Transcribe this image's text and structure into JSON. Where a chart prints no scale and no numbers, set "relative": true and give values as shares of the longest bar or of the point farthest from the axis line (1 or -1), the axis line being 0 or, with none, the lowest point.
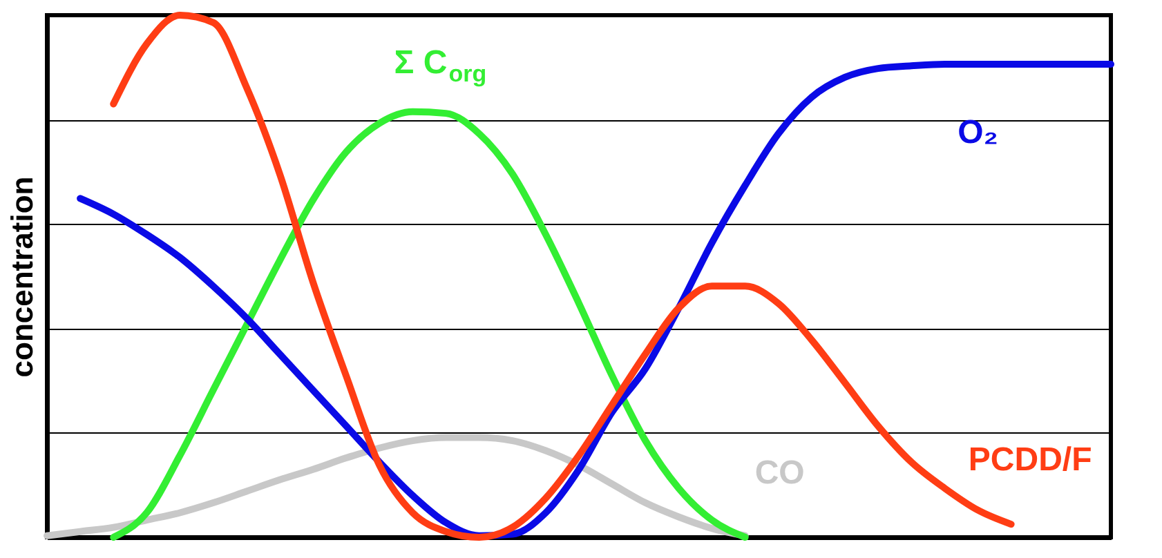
{
  "chart_data": {
    "type": "line",
    "relative": true,
    "ylabel": "concentration",
    "grid": "y",
    "legend": false,
    "categories": [
      null,
      null,
      null,
      null,
      null,
      null,
      null,
      null,
      null,
      null,
      null,
      null,
      null,
      null,
      null,
      null,
      null,
      null,
      null,
      null,
      null,
      null,
      null,
      null,
      null,
      null,
      null,
      null,
      null,
      null,
      null,
      null,
      null
    ],
    "series": [
      {
        "name": "CO",
        "color": "#c8c8c8",
        "values": [
          0.003,
          0.011,
          0.019,
          0.033,
          0.047,
          0.066,
          0.088,
          0.11,
          0.13,
          0.152,
          0.171,
          0.185,
          0.191,
          0.191,
          0.185,
          0.166,
          0.138,
          0.102,
          0.066,
          0.039,
          0.017,
          0.003,
          null,
          null,
          null,
          null,
          null,
          null,
          null,
          null,
          null,
          null,
          null
        ]
      },
      {
        "name": "Σ C$_{org}$",
        "color": "#33ee33",
        "values": [
          null,
          null,
          0,
          0.047,
          0.157,
          0.282,
          0.406,
          0.53,
          0.646,
          0.738,
          0.793,
          0.815,
          0.812,
          0.773,
          0.696,
          0.58,
          0.448,
          0.309,
          0.185,
          0.094,
          0.033,
          0,
          null,
          null,
          null,
          null,
          null,
          null,
          null,
          null,
          null,
          null,
          null
        ]
      },
      {
        "name": "O₂",
        "color": "#0a0ae6",
        "values": [
          null,
          0.649,
          0.619,
          0.58,
          0.536,
          0.481,
          0.42,
          0.351,
          0.282,
          0.213,
          0.144,
          0.08,
          0.028,
          0.003,
          0.006,
          0.047,
          0.13,
          0.24,
          0.323,
          0.439,
          0.564,
          0.674,
          0.773,
          0.843,
          0.881,
          0.898,
          0.903,
          0.906,
          0.906,
          0.906,
          0.906,
          0.906,
          0.906
        ]
      },
      {
        "name": "PCDD/F",
        "color": "#ff3d14",
        "values": [
          null,
          null,
          0.83,
          0.945,
          1,
          0.986,
          0.862,
          0.696,
          0.489,
          0.309,
          0.138,
          0.047,
          0.011,
          0,
          0.019,
          0.075,
          0.157,
          0.254,
          0.351,
          0.439,
          0.481,
          0.481,
          0.448,
          0.378,
          0.296,
          0.213,
          0.144,
          0.094,
          0.052,
          0.025,
          null,
          null,
          null
        ]
      }
    ]
  }
}
